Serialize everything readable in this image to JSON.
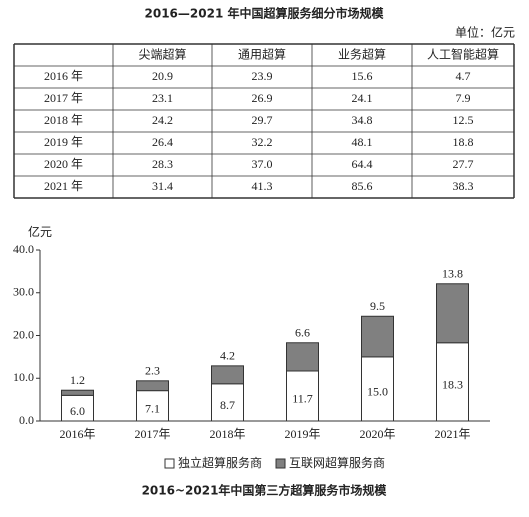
{
  "table": {
    "title": "2016—2021 年中国超算服务细分市场规模",
    "unit": "单位：亿元",
    "header": [
      "尖端超算",
      "通用超算",
      "业务超算",
      "人工智能超算"
    ],
    "rows": [
      [
        "2016 年",
        "20.9",
        "23.9",
        "15.6",
        "4.7"
      ],
      [
        "2017 年",
        "23.1",
        "26.9",
        "24.1",
        "7.9"
      ],
      [
        "2018 年",
        "24.2",
        "29.7",
        "34.8",
        "12.5"
      ],
      [
        "2019 年",
        "26.4",
        "32.2",
        "48.1",
        "18.8"
      ],
      [
        "2020 年",
        "28.3",
        "37.0",
        "64.4",
        "27.7"
      ],
      [
        "2021 年",
        "31.4",
        "41.3",
        "85.6",
        "38.3"
      ]
    ]
  },
  "chart_data": {
    "type": "stacked_bar",
    "title": "2016~2021年中国第三方超算服务市场规模",
    "ylabel": "亿元",
    "categories": [
      "2016年",
      "2017年",
      "2018年",
      "2019年",
      "2020年",
      "2021年"
    ],
    "series": [
      {
        "name": "独立超算服务商",
        "color": "#ffffff",
        "values": [
          6.0,
          7.1,
          8.7,
          11.7,
          15.0,
          18.3
        ],
        "value_labels": [
          "6.0",
          "7.1",
          "8.7",
          "11.7",
          "15.0",
          "18.3"
        ]
      },
      {
        "name": "互联网超算服务商",
        "color": "#808080",
        "values": [
          1.2,
          2.3,
          4.2,
          6.6,
          9.5,
          13.8
        ]
      }
    ],
    "ylim": [
      0,
      40
    ],
    "yticks": [
      {
        "value": 0,
        "label": "0.0"
      },
      {
        "value": 10,
        "label": "10.0"
      },
      {
        "value": 20,
        "label": "20.0"
      },
      {
        "value": 30,
        "label": "30.0"
      },
      {
        "value": 40,
        "label": "40.0"
      }
    ]
  }
}
